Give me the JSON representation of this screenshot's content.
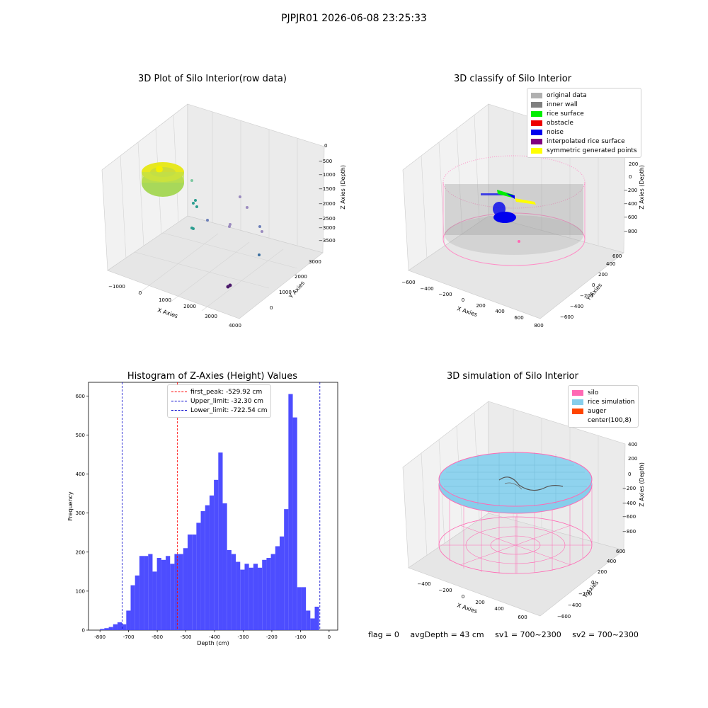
{
  "suptitle": "PJPJR01 2026-06-08 23:25:33",
  "footer": {
    "flag": "flag = 0",
    "avg": "avgDepth = 43 cm",
    "sv1": "sv1 = 700~2300",
    "sv2": "sv2 = 700~2300"
  },
  "colors": {
    "histogram_bar": "#4d4dff",
    "first_peak": "#ff0000",
    "limits": "#0000cc",
    "silo": "#ff69b4",
    "rice": "#87ceeb",
    "auger": "#ff4500"
  },
  "plots": {
    "raw": {
      "title": "3D Plot of Silo Interior(row data)",
      "xlabel": "X Axies",
      "ylabel": "Y Axies",
      "zlabel": "Z Axies (Depth)",
      "xticks": [
        "−1000",
        "0",
        "1000",
        "2000",
        "3000",
        "4000"
      ],
      "yticks": [
        "0",
        "1000",
        "2000",
        "3000"
      ],
      "zticks": [
        "0",
        "−500",
        "−1000",
        "−1500",
        "−2000",
        "−2500",
        "−3000",
        "−3500"
      ]
    },
    "classify": {
      "title": "3D classify of Silo Interior",
      "xlabel": "X Axies",
      "ylabel": "Y Axies",
      "zlabel": "Z Axies (Depth)",
      "xticks": [
        "−600",
        "−400",
        "−200",
        "0",
        "200",
        "400",
        "600",
        "800"
      ],
      "yticks": [
        "−600",
        "−400",
        "−200",
        "0",
        "200",
        "400",
        "600"
      ],
      "zticks": [
        "400",
        "200",
        "0",
        "−200",
        "−400",
        "−600",
        "−800"
      ],
      "legend": [
        {
          "label": "original data",
          "color": "#b0b0b0"
        },
        {
          "label": "inner wall",
          "color": "#808080"
        },
        {
          "label": "rice surface",
          "color": "#00ee00"
        },
        {
          "label": "obstacle",
          "color": "#ee0000"
        },
        {
          "label": "noise",
          "color": "#0000ee"
        },
        {
          "label": "interpolated rice surface",
          "color": "#800080"
        },
        {
          "label": "symmetric generated points",
          "color": "#ffff00"
        }
      ]
    },
    "simulation": {
      "title": "3D simulation of Silo Interior",
      "xlabel": "X Axies",
      "ylabel": "Y Axies",
      "zlabel": "Z Axies (Depth)",
      "xticks": [
        "−400",
        "−200",
        "0",
        "200",
        "400",
        "600"
      ],
      "yticks": [
        "−600",
        "−400",
        "−200",
        "0",
        "200",
        "400",
        "600"
      ],
      "zticks": [
        "400",
        "200",
        "0",
        "−200",
        "−400",
        "−600",
        "−800"
      ],
      "legend": [
        {
          "label": "silo",
          "color": "#ff69b4"
        },
        {
          "label": "rice simulation",
          "color": "#87ceeb"
        },
        {
          "label": "auger",
          "color": "#ff4500"
        },
        {
          "label": "center(100,8)",
          "color": ""
        }
      ]
    }
  },
  "chart_data": {
    "type": "bar",
    "title": "Histogram of Z-Axies (Height) Values",
    "xlabel": "Depth (cm)",
    "ylabel": "Frequency",
    "xlim": [
      -840,
      30
    ],
    "ylim": [
      0,
      635
    ],
    "bin_start": -800,
    "bin_width": 15.3,
    "values": [
      3,
      5,
      8,
      15,
      20,
      15,
      50,
      115,
      140,
      190,
      190,
      195,
      150,
      185,
      180,
      190,
      170,
      195,
      195,
      210,
      245,
      245,
      275,
      305,
      320,
      345,
      385,
      455,
      325,
      205,
      195,
      175,
      155,
      170,
      160,
      170,
      160,
      180,
      185,
      195,
      215,
      240,
      310,
      605,
      545,
      110,
      110,
      50,
      30,
      60
    ],
    "xticks": [
      -800,
      -700,
      -600,
      -500,
      -400,
      -300,
      -200,
      -100,
      0
    ],
    "yticks": [
      0,
      100,
      200,
      300,
      400,
      500,
      600
    ],
    "vlines": [
      {
        "label": "first_peak: -529.92 cm",
        "x": -529.92,
        "color": "#ff0000"
      },
      {
        "label": "Upper_limit: -32.30 cm",
        "x": -32.3,
        "color": "#0000cc"
      },
      {
        "label": "Lower_limit: -722.54 cm",
        "x": -722.54,
        "color": "#0000cc"
      }
    ]
  }
}
